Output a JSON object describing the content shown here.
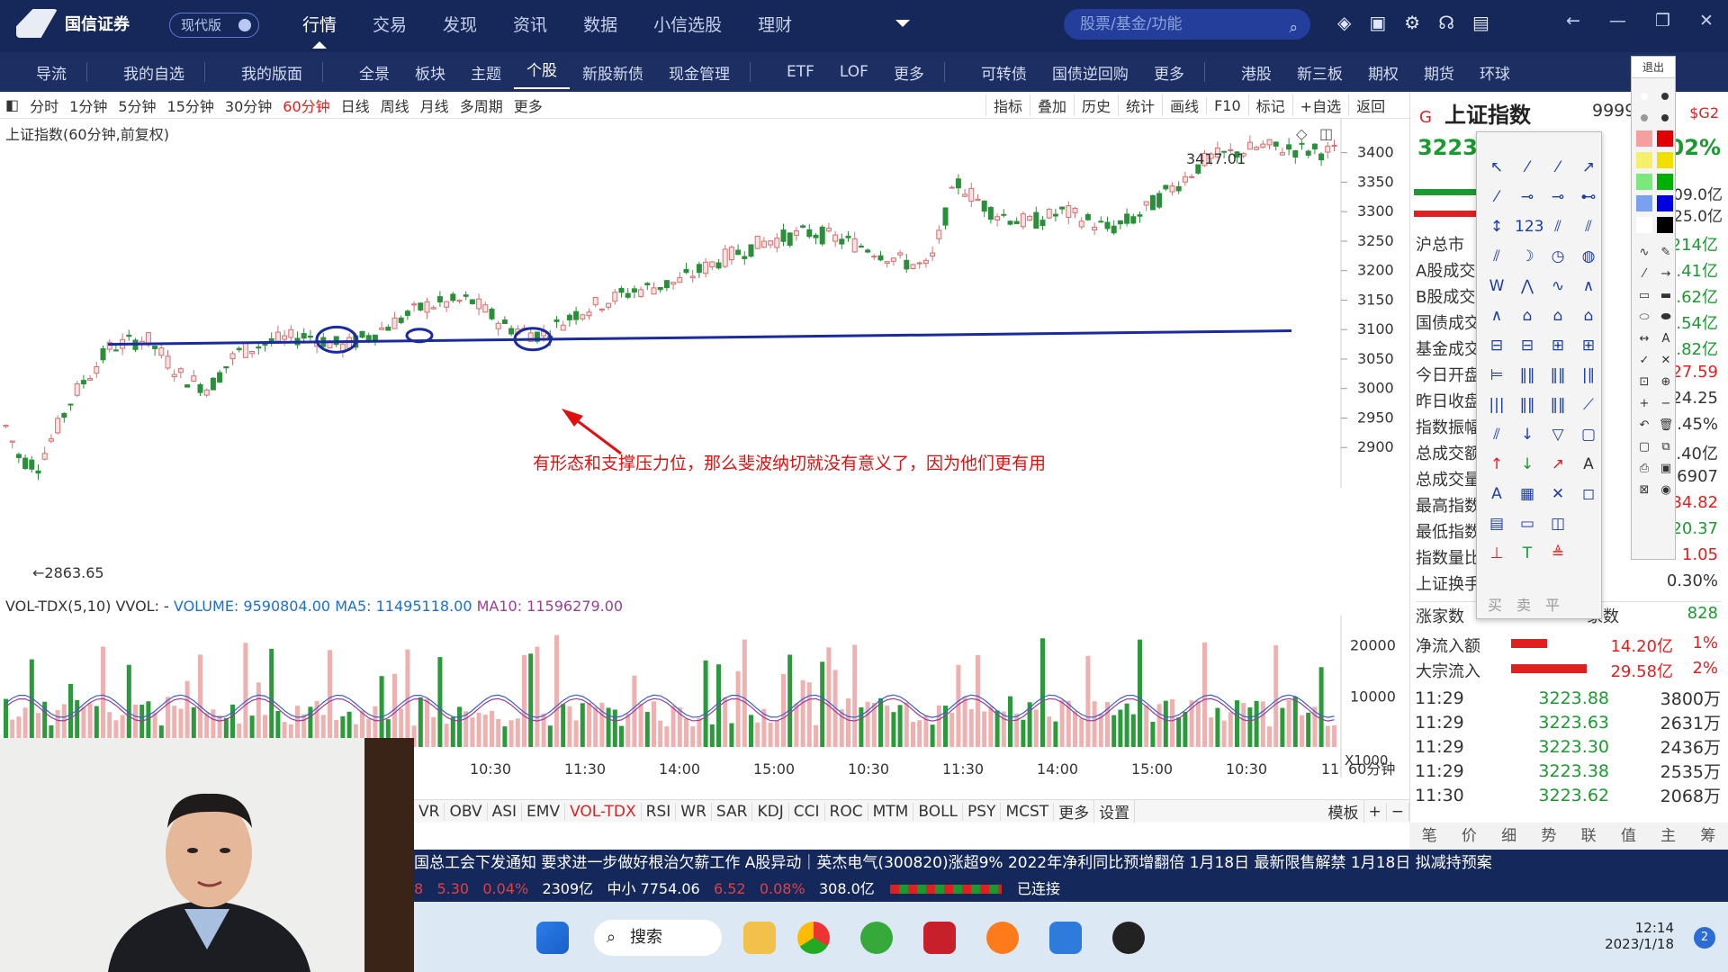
{
  "app": {
    "logo_text": "国信证券",
    "version_label": "现代版"
  },
  "topnav": [
    "行情",
    "交易",
    "发现",
    "资讯",
    "数据",
    "小信选股",
    "理财"
  ],
  "search": {
    "placeholder": "股票/基金/功能"
  },
  "subnav": [
    "导流",
    "我的自选",
    "我的版面",
    "全景",
    "板块",
    "主题",
    "个股",
    "新股新债",
    "现金管理",
    "ETF",
    "LOF",
    "更多",
    "可转债",
    "国债逆回购",
    "更多",
    "港股",
    "新三板",
    "期权",
    "期货",
    "环球"
  ],
  "periods": [
    "分时",
    "1分钟",
    "5分钟",
    "15分钟",
    "30分钟",
    "60分钟",
    "日线",
    "周线",
    "月线",
    "多周期",
    "更多"
  ],
  "active_period": "60分钟",
  "right_tools": [
    "指标",
    "叠加",
    "历史",
    "统计",
    "画线",
    "F10",
    "标记",
    "+自选",
    "返回"
  ],
  "chart": {
    "title": "上证指数(60分钟,前复权)",
    "high_label": "3417.01",
    "low_label": "2863.65",
    "y_ticks": [
      "3400",
      "3350",
      "3300",
      "3250",
      "3200",
      "3150",
      "3100",
      "3050",
      "3000",
      "2950",
      "2900"
    ]
  },
  "annotation": "有形态和支撑压力位，那么斐波纳切就没有意义了，因为他们更有用",
  "volume": {
    "name": "VOL-TDX(5,10)",
    "vvol": "VVOL: -",
    "volume": "VOLUME: 9590804.00",
    "ma5": "MA5: 11495118.00",
    "ma10": "MA10: 11596279.00",
    "y_ticks": [
      "20000",
      "10000",
      "X1000"
    ]
  },
  "xaxis": [
    "10:30",
    "11:30",
    "14:00",
    "15:00",
    "10:30",
    "11:30",
    "14:00",
    "15:00",
    "10:30",
    "11"
  ],
  "xaxis_period": "60分钟",
  "indicators": [
    "VR",
    "OBV",
    "ASI",
    "EMV",
    "VOL-TDX",
    "RSI",
    "WR",
    "SAR",
    "KDJ",
    "CCI",
    "ROC",
    "MTM",
    "BOLL",
    "PSY",
    "MCST",
    "更多",
    "设置"
  ],
  "indicator_extra": [
    "模板",
    "+",
    "−"
  ],
  "rpanel": {
    "flag": "G",
    "name": "上证指数",
    "code": "999999",
    "code_tail": "$G2",
    "price": "3223.",
    "pct": "02%",
    "rows": [
      {
        "label": "沪总市",
        "value": "214亿"
      },
      {
        "label": "A股成交",
        "value": ".41亿"
      },
      {
        "label": "B股成交",
        "value": ".62亿"
      },
      {
        "label": "国债成交",
        "value": ".54亿"
      },
      {
        "label": "基金成交",
        "value": ".82亿"
      },
      {
        "label": "今日开盘",
        "value": "27.59"
      },
      {
        "label": "昨日收盘",
        "value": "24.25"
      },
      {
        "label": "指数振幅",
        "value": ".45%"
      },
      {
        "label": "总成交额",
        "value": ".40亿"
      },
      {
        "label": "总成交量",
        "value": "46907"
      },
      {
        "label": "最高指数",
        "value": "34.82"
      },
      {
        "label": "最低指数",
        "value": "20.37"
      },
      {
        "label": "指数量比",
        "value": "1.05"
      },
      {
        "label": "上证换手",
        "value": "0.30%"
      }
    ],
    "side_values": [
      "09.0亿",
      "25.0亿"
    ],
    "zhangjia": {
      "label": "涨家数",
      "mid": "家数",
      "value": "828"
    },
    "inflow": [
      {
        "label": "净流入额",
        "value": "14.20亿",
        "pct": "1%"
      },
      {
        "label": "大宗流入",
        "value": "29.58亿",
        "pct": "2%"
      }
    ],
    "ticks": [
      {
        "time": "11:29",
        "price": "3223.88",
        "vol": "3800万"
      },
      {
        "time": "11:29",
        "price": "3223.63",
        "vol": "2631万"
      },
      {
        "time": "11:29",
        "price": "3223.30",
        "vol": "2436万"
      },
      {
        "time": "11:29",
        "price": "3223.38",
        "vol": "2535万"
      },
      {
        "time": "11:30",
        "price": "3223.62",
        "vol": "2068万"
      }
    ],
    "tabs": [
      "笔",
      "价",
      "细",
      "势",
      "联",
      "值",
      "主",
      "筹"
    ]
  },
  "colorpal_label": "退出",
  "drawpal_bottom": [
    "买",
    "卖",
    "平"
  ],
  "news": "国总工会下发通知 要求进一步做好根治欠薪工作        A股异动｜英杰电气(300820)涨超9% 2022年净利同比预增翻倍        1月18日  最新限售解禁        1月18日  拟减持预案",
  "status": {
    "a": "8",
    "b": "5.30",
    "c": "0.04%",
    "d": "2309亿",
    "e": "中小 7754.06",
    "f": "6.52",
    "g": "0.08%",
    "h": "308.0亿",
    "conn": "已连接"
  },
  "taskbar": {
    "search": "搜索",
    "time": "12:14",
    "date": "2023/1/18",
    "badge": "2"
  },
  "colors": {
    "up": "#e02020",
    "down": "#1a9a30",
    "nav": "#16285a",
    "trend": "#1a2aa0"
  }
}
